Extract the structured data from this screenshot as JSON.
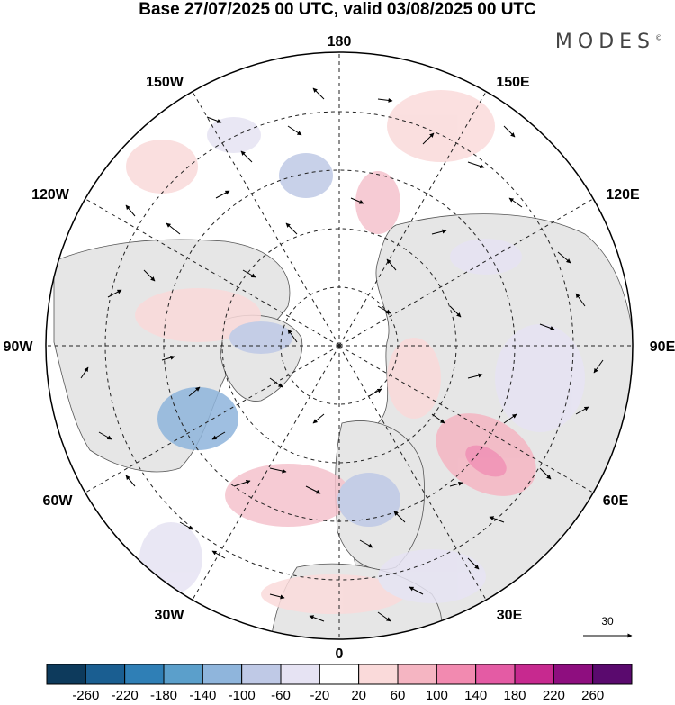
{
  "title": "Base 27/07/2025 00 UTC, valid 03/08/2025 00 UTC",
  "logo": "MODES",
  "logo_mark": "©",
  "longitude_labels": {
    "n180": "180",
    "e150": "150E",
    "e120": "120E",
    "e90": "90E",
    "e60": "60E",
    "e30": "30E",
    "z0": "0",
    "w30": "30W",
    "w60": "60W",
    "w90": "90W",
    "w120": "120W",
    "w150": "150W"
  },
  "reference_vector": "30",
  "colorbar": {
    "labels": [
      "-260",
      "-220",
      "-180",
      "-140",
      "-100",
      "-60",
      "-20",
      "20",
      "60",
      "100",
      "140",
      "180",
      "220",
      "260"
    ],
    "colors": [
      "#0d3a5c",
      "#1a5e91",
      "#2f7fb6",
      "#5b9fcb",
      "#8fb5dc",
      "#bfc9e6",
      "#e6e3f3",
      "#ffffff",
      "#fadada",
      "#f5b5c2",
      "#f28ab0",
      "#e45ba4",
      "#c7298f",
      "#8e0e7f",
      "#5a0a6e"
    ]
  },
  "colors": {
    "land": "#e8e8e8",
    "ocean": "#ffffff",
    "coast": "#555555"
  }
}
